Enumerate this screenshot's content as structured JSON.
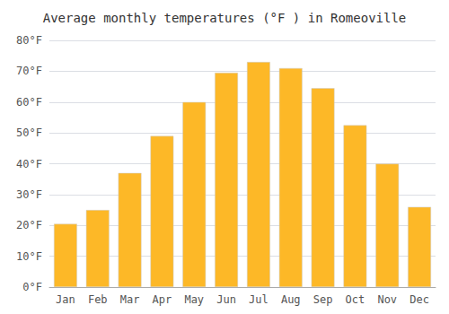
{
  "chart_data": {
    "type": "bar",
    "title": "Average monthly temperatures (°F ) in Romeoville",
    "categories": [
      "Jan",
      "Feb",
      "Mar",
      "Apr",
      "May",
      "Jun",
      "Jul",
      "Aug",
      "Sep",
      "Oct",
      "Nov",
      "Dec"
    ],
    "values": [
      20.5,
      25.0,
      37.0,
      49.0,
      60.0,
      69.5,
      73.0,
      71.0,
      64.5,
      52.5,
      40.0,
      26.0
    ],
    "color": "#FDB827",
    "ylim": [
      0,
      80
    ],
    "yticks": [
      {
        "value": 0,
        "label": "0°F"
      },
      {
        "value": 10,
        "label": "10°F"
      },
      {
        "value": 20,
        "label": "20°F"
      },
      {
        "value": 30,
        "label": "30°F"
      },
      {
        "value": 40,
        "label": "40°F"
      },
      {
        "value": 50,
        "label": "50°F"
      },
      {
        "value": 60,
        "label": "60°F"
      },
      {
        "value": 70,
        "label": "70°F"
      },
      {
        "value": 80,
        "label": "80°F"
      }
    ],
    "grid": true
  }
}
